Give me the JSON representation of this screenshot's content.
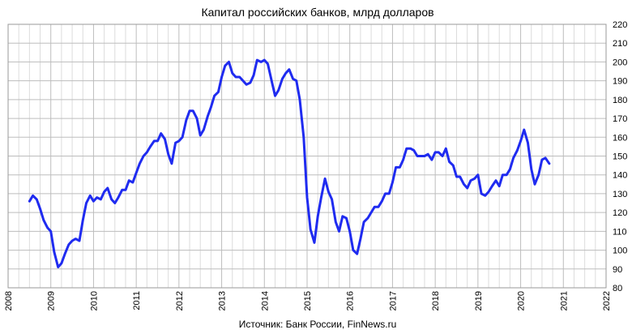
{
  "chart_data": {
    "type": "line",
    "title": "Капитал российских банков, млрд долларов",
    "source": "Источник: Банк России, FinNews.ru",
    "xlabel": "",
    "ylabel": "",
    "xlim": [
      2008,
      2022
    ],
    "ylim": [
      80,
      220
    ],
    "x_ticks": [
      "2008",
      "2009",
      "2010",
      "2011",
      "2012",
      "2013",
      "2014",
      "2015",
      "2016",
      "2017",
      "2018",
      "2019",
      "2020",
      "2021",
      "2022"
    ],
    "y_ticks": [
      "80",
      "90",
      "100",
      "110",
      "120",
      "130",
      "140",
      "150",
      "160",
      "170",
      "180",
      "190",
      "200",
      "210",
      "220"
    ],
    "grid": true,
    "line_color": "#1f2bf0",
    "series": [
      {
        "x": [
          2008.5,
          2008.58,
          2008.67,
          2008.75,
          2008.83,
          2008.92,
          2009.0,
          2009.08,
          2009.17,
          2009.25,
          2009.33,
          2009.42,
          2009.5,
          2009.58,
          2009.67,
          2009.75,
          2009.83,
          2009.92,
          2010.0,
          2010.08,
          2010.17,
          2010.25,
          2010.33,
          2010.42,
          2010.5,
          2010.58,
          2010.67,
          2010.75,
          2010.83,
          2010.92,
          2011.0,
          2011.08,
          2011.17,
          2011.25,
          2011.33,
          2011.42,
          2011.5,
          2011.58,
          2011.67,
          2011.75,
          2011.83,
          2011.92,
          2012.0,
          2012.08,
          2012.17,
          2012.25,
          2012.33,
          2012.42,
          2012.5,
          2012.58,
          2012.67,
          2012.75,
          2012.83,
          2012.92,
          2013.0,
          2013.08,
          2013.17,
          2013.25,
          2013.33,
          2013.42,
          2013.5,
          2013.58,
          2013.67,
          2013.75,
          2013.83,
          2013.92,
          2014.0,
          2014.08,
          2014.17,
          2014.25,
          2014.33,
          2014.42,
          2014.5,
          2014.58,
          2014.67,
          2014.75,
          2014.83,
          2014.92,
          2015.0,
          2015.08,
          2015.17,
          2015.25,
          2015.33,
          2015.42,
          2015.5,
          2015.58,
          2015.67,
          2015.75,
          2015.83,
          2015.92,
          2016.0,
          2016.08,
          2016.17,
          2016.25,
          2016.33,
          2016.42,
          2016.5,
          2016.58,
          2016.67,
          2016.75,
          2016.83,
          2016.92,
          2017.0,
          2017.08,
          2017.17,
          2017.25,
          2017.33,
          2017.42,
          2017.5,
          2017.58,
          2017.67,
          2017.75,
          2017.83,
          2017.92,
          2018.0,
          2018.08,
          2018.17,
          2018.25,
          2018.33,
          2018.42,
          2018.5,
          2018.58,
          2018.67,
          2018.75,
          2018.83,
          2018.92,
          2019.0,
          2019.08,
          2019.17,
          2019.25,
          2019.33,
          2019.42,
          2019.5,
          2019.58,
          2019.67,
          2019.75,
          2019.83,
          2019.92,
          2020.0,
          2020.08,
          2020.17,
          2020.25,
          2020.33,
          2020.42,
          2020.5,
          2020.58,
          2020.67
        ],
        "values": [
          126,
          129,
          127,
          122,
          116,
          112,
          110,
          99,
          91,
          93,
          98,
          103,
          105,
          106,
          105,
          116,
          125,
          129,
          126,
          128,
          127,
          131,
          133,
          127,
          125,
          128,
          132,
          132,
          137,
          136,
          141,
          146,
          150,
          152,
          155,
          158,
          158,
          162,
          159,
          151,
          146,
          157,
          158,
          160,
          169,
          174,
          174,
          170,
          161,
          164,
          171,
          176,
          182,
          184,
          192,
          198,
          200,
          194,
          192,
          192,
          190,
          188,
          189,
          193,
          201,
          200,
          201,
          199,
          190,
          182,
          185,
          191,
          194,
          196,
          191,
          190,
          180,
          160,
          128,
          111,
          104,
          118,
          128,
          138,
          131,
          127,
          115,
          110,
          118,
          117,
          110,
          100,
          98,
          106,
          115,
          117,
          120,
          123,
          123,
          126,
          130,
          130,
          136,
          144,
          144,
          148,
          154,
          154,
          153,
          150,
          150,
          150,
          151,
          148,
          152,
          152,
          150,
          154,
          147,
          145,
          139,
          139,
          135,
          133,
          137,
          138,
          140,
          130,
          129,
          131,
          134,
          137,
          134,
          140,
          140,
          143,
          149,
          153,
          158,
          164,
          157,
          143,
          135,
          140,
          148,
          149,
          146
        ]
      }
    ]
  }
}
